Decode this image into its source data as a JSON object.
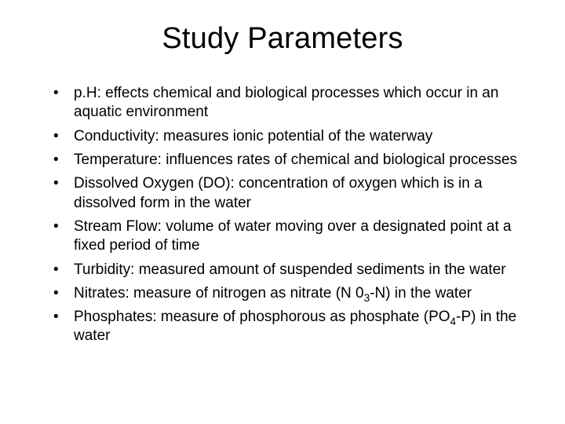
{
  "title": "Study Parameters",
  "title_fontsize": 38,
  "body_fontsize": 19,
  "background_color": "#ffffff",
  "text_color": "#000000",
  "font_family": "Arial",
  "bullets": [
    {
      "text": "p.H:  effects chemical and biological processes which occur in an aquatic environment"
    },
    {
      "text": "Conductivity:  measures ionic potential of the waterway"
    },
    {
      "text": "Temperature:  influences rates of chemical and biological processes"
    },
    {
      "text": "Dissolved Oxygen (DO):  concentration of oxygen which is in a dissolved form in the water"
    },
    {
      "text": "Stream Flow:  volume of water moving over a designated point at a fixed period of time"
    },
    {
      "text": "Turbidity:  measured amount of suspended sediments in the water"
    },
    {
      "text_pre": "Nitrates:  measure of nitrogen as nitrate (N 0",
      "sub": "3",
      "text_post": "-N) in the water"
    },
    {
      "text_pre": "Phosphates:  measure of phosphorous as phosphate (PO",
      "sub": "4",
      "text_post": "-P) in the water"
    }
  ]
}
